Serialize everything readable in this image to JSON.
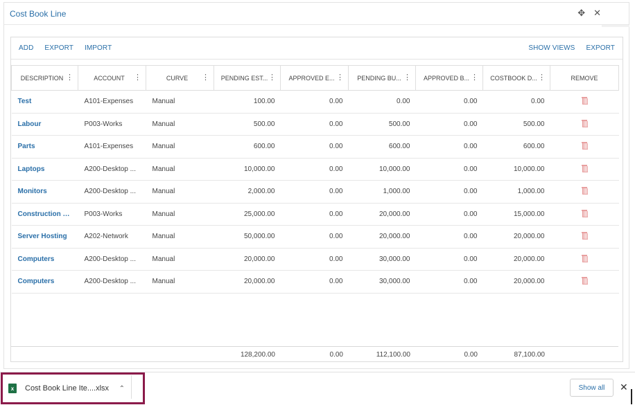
{
  "window": {
    "title": "Cost Book Line",
    "collapse_icon": "collapse-icon",
    "close_icon": "close-icon"
  },
  "toolbar": {
    "left": [
      "ADD",
      "EXPORT",
      "IMPORT"
    ],
    "right": [
      "SHOW VIEWS",
      "EXPORT"
    ]
  },
  "columns": [
    "DESCRIPTION",
    "ACCOUNT",
    "CURVE",
    "PENDING EST...",
    "APPROVED E...",
    "PENDING BU...",
    "APPROVED B...",
    "COSTBOOK D...",
    "REMOVE"
  ],
  "rows": [
    {
      "description": "Test",
      "account": "A101-Expenses",
      "curve": "Manual",
      "pending_est": "100.00",
      "approved_e": "0.00",
      "pending_bu": "0.00",
      "approved_b": "0.00",
      "costbook_d": "0.00"
    },
    {
      "description": "Labour",
      "account": "P003-Works",
      "curve": "Manual",
      "pending_est": "500.00",
      "approved_e": "0.00",
      "pending_bu": "500.00",
      "approved_b": "0.00",
      "costbook_d": "500.00"
    },
    {
      "description": "Parts",
      "account": "A101-Expenses",
      "curve": "Manual",
      "pending_est": "600.00",
      "approved_e": "0.00",
      "pending_bu": "600.00",
      "approved_b": "0.00",
      "costbook_d": "600.00"
    },
    {
      "description": "Laptops",
      "account": "A200-Desktop ...",
      "curve": "Manual",
      "pending_est": "10,000.00",
      "approved_e": "0.00",
      "pending_bu": "10,000.00",
      "approved_b": "0.00",
      "costbook_d": "10,000.00"
    },
    {
      "description": "Monitors",
      "account": "A200-Desktop ...",
      "curve": "Manual",
      "pending_est": "2,000.00",
      "approved_e": "0.00",
      "pending_bu": "1,000.00",
      "approved_b": "0.00",
      "costbook_d": "1,000.00"
    },
    {
      "description": "Construction C...",
      "account": "P003-Works",
      "curve": "Manual",
      "pending_est": "25,000.00",
      "approved_e": "0.00",
      "pending_bu": "20,000.00",
      "approved_b": "0.00",
      "costbook_d": "15,000.00"
    },
    {
      "description": "Server Hosting",
      "account": "A202-Network",
      "curve": "Manual",
      "pending_est": "50,000.00",
      "approved_e": "0.00",
      "pending_bu": "20,000.00",
      "approved_b": "0.00",
      "costbook_d": "20,000.00"
    },
    {
      "description": "Computers",
      "account": "A200-Desktop ...",
      "curve": "Manual",
      "pending_est": "20,000.00",
      "approved_e": "0.00",
      "pending_bu": "30,000.00",
      "approved_b": "0.00",
      "costbook_d": "20,000.00"
    },
    {
      "description": "Computers",
      "account": "A200-Desktop ...",
      "curve": "Manual",
      "pending_est": "20,000.00",
      "approved_e": "0.00",
      "pending_bu": "30,000.00",
      "approved_b": "0.00",
      "costbook_d": "20,000.00"
    }
  ],
  "totals": [
    "128,200.00",
    "0.00",
    "112,100.00",
    "0.00",
    "87,100.00"
  ],
  "downloads": {
    "file_name": "Cost Book Line Ite....xlsx",
    "file_icon": "excel-file-icon",
    "show_all": "Show all"
  },
  "colors": {
    "link": "#2a6fa8",
    "highlight_border": "#8b1a4a",
    "trash": "#e8a0a0",
    "excel": "#1e7145"
  }
}
